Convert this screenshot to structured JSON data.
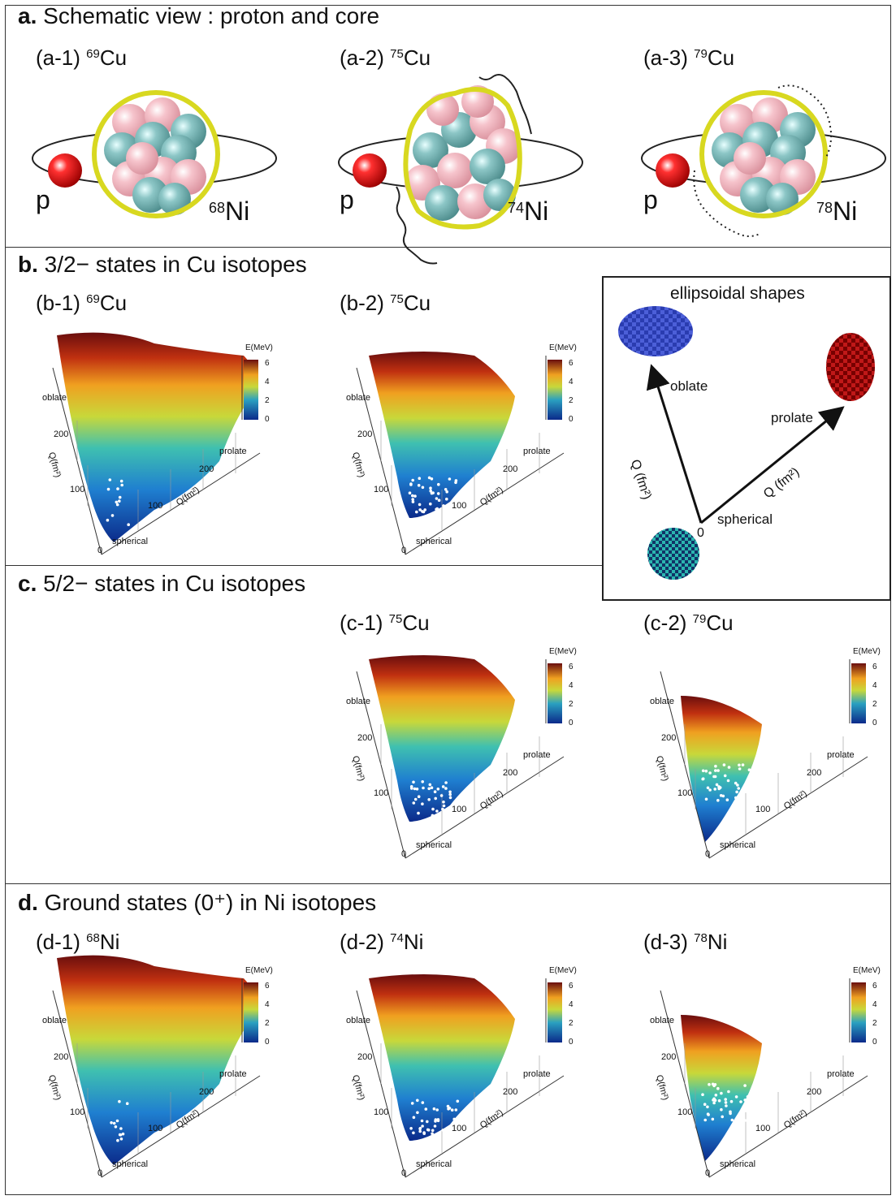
{
  "sections": {
    "a": {
      "letter": "a.",
      "title": "Schematic view : proton and core",
      "panels": [
        {
          "label": "(a-1) ",
          "mass": "69",
          "el": "Cu",
          "core_mass": "68",
          "core_el": "Ni",
          "proton": "p"
        },
        {
          "label": "(a-2) ",
          "mass": "75",
          "el": "Cu",
          "core_mass": "74",
          "core_el": "Ni",
          "proton": "p"
        },
        {
          "label": "(a-3) ",
          "mass": "79",
          "el": "Cu",
          "core_mass": "78",
          "core_el": "Ni",
          "proton": "p"
        }
      ]
    },
    "b": {
      "letter": "b.",
      "title": " 3/2− states in Cu isotopes",
      "panels": [
        {
          "label": "(b-1) ",
          "mass": "69",
          "el": "Cu"
        },
        {
          "label": "(b-2) ",
          "mass": "75",
          "el": "Cu"
        }
      ]
    },
    "c": {
      "letter": "c.",
      "title": " 5/2− states in Cu isotopes",
      "panels": [
        {
          "label": "(c-1) ",
          "mass": "75",
          "el": "Cu"
        },
        {
          "label": "(c-2) ",
          "mass": "79",
          "el": "Cu"
        }
      ]
    },
    "d": {
      "letter": "d.",
      "title": " Ground states (0⁺) in Ni isotopes",
      "panels": [
        {
          "label": "(d-1) ",
          "mass": "68",
          "el": "Ni"
        },
        {
          "label": "(d-2) ",
          "mass": "74",
          "el": "Ni"
        },
        {
          "label": "(d-3) ",
          "mass": "78",
          "el": "Ni"
        }
      ]
    }
  },
  "plot_labels": {
    "energy_unit": "E(MeV)",
    "colorbar_ticks": [
      "6",
      "4",
      "2",
      "0"
    ],
    "oblate": "oblate",
    "prolate": "prolate",
    "spherical": "spherical",
    "q_axis": "Q(fm²)",
    "origin": "0",
    "tick_100": "100",
    "tick_200": "200"
  },
  "shapes_box": {
    "title": "ellipsoidal shapes",
    "oblate": "oblate",
    "prolate": "prolate",
    "spherical": "spherical",
    "q_left": "Q (fm²)",
    "q_right": "Q (fm²)",
    "origin": "0",
    "colors": {
      "oblate": "#2a3cb0",
      "prolate": "#c01818",
      "spherical": "#2bb5b0"
    }
  },
  "colors": {
    "frame": "#333333",
    "halo": "#d8d820",
    "proton": "#e01010",
    "nucleon_pink": "#f2b8c0",
    "nucleon_teal": "#7fb8b8"
  }
}
